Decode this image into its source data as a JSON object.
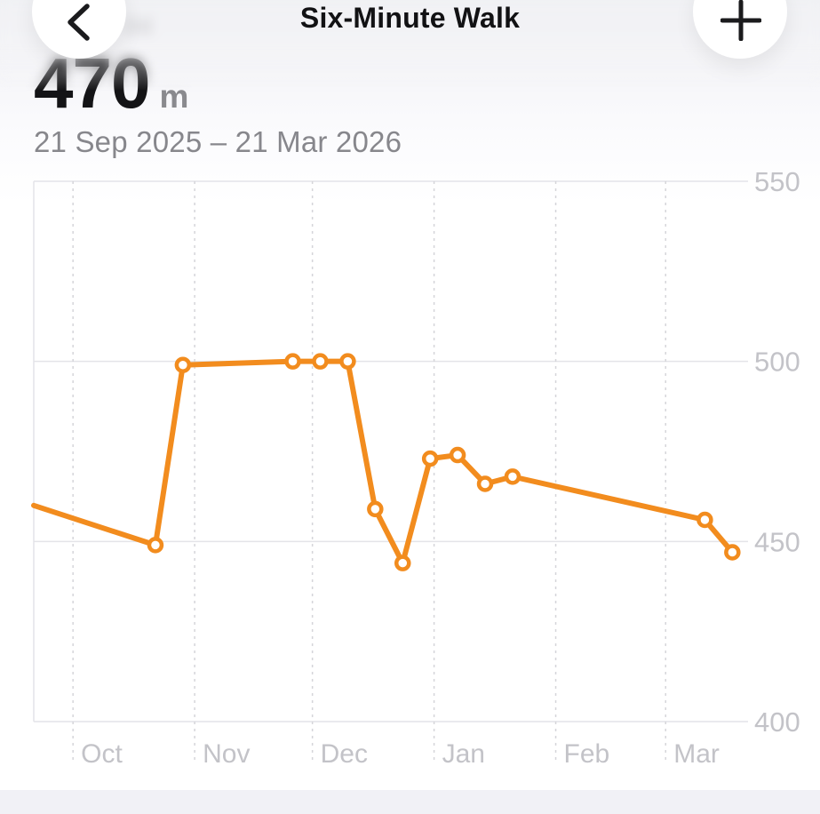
{
  "header": {
    "title": "Six-Minute Walk",
    "back_icon": "chevron-left",
    "add_icon": "plus",
    "ghost_text": "04"
  },
  "summary": {
    "value": "470",
    "unit": "m",
    "date_range": "21 Sep 2025 – 21 Mar 2026"
  },
  "chart_data": {
    "type": "line",
    "title": "Six-Minute Walk",
    "ylabel": "m",
    "ylim": [
      400,
      550
    ],
    "y_ticks": [
      550,
      500,
      450,
      400
    ],
    "x_start_date": "21 Sep 2025",
    "x_range_days": 182,
    "x_ticks": [
      {
        "label": "Oct",
        "day": 10
      },
      {
        "label": "Nov",
        "day": 41
      },
      {
        "label": "Dec",
        "day": 71
      },
      {
        "label": "Jan",
        "day": 102
      },
      {
        "label": "Feb",
        "day": 133
      },
      {
        "label": "Mar",
        "day": 161
      }
    ],
    "line_start": {
      "day": 0,
      "value": 460
    },
    "points": [
      {
        "day": 31,
        "value": 449
      },
      {
        "day": 38,
        "value": 499
      },
      {
        "day": 66,
        "value": 500
      },
      {
        "day": 73,
        "value": 500
      },
      {
        "day": 80,
        "value": 500
      },
      {
        "day": 87,
        "value": 459
      },
      {
        "day": 94,
        "value": 444
      },
      {
        "day": 101,
        "value": 473
      },
      {
        "day": 108,
        "value": 474
      },
      {
        "day": 115,
        "value": 466
      },
      {
        "day": 122,
        "value": 468
      },
      {
        "day": 171,
        "value": 456
      },
      {
        "day": 178,
        "value": 447
      }
    ],
    "grid": true,
    "legend": false,
    "colors": {
      "line": "#F28C1E",
      "marker_fill": "#FFFFFF",
      "grid": "#E4E4E8",
      "dashed_grid": "#D5D5D9",
      "tick_label": "#C3C3C8"
    }
  }
}
